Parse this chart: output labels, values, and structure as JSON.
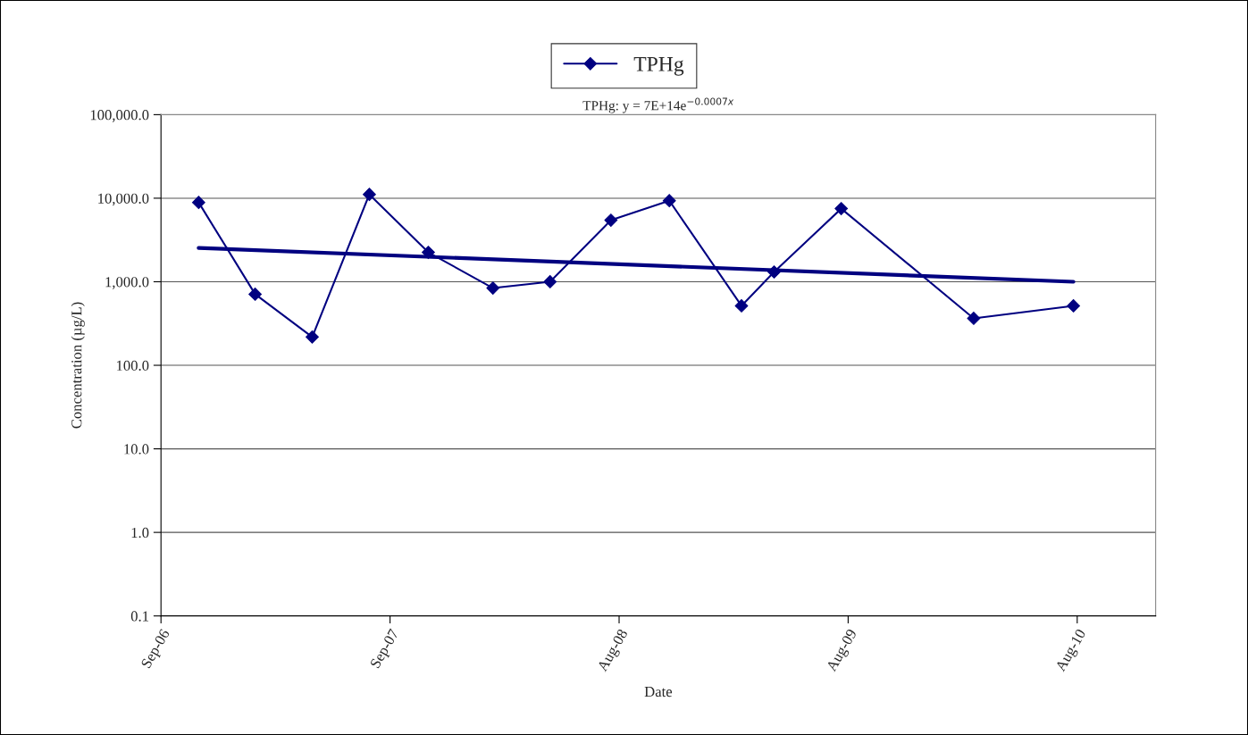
{
  "chart_data": {
    "type": "line",
    "xlabel": "Date",
    "ylabel": "Concentration (µg/L)",
    "annotations": [
      "TPHg: y = 7E+14e$^{−0.0007x}$"
    ],
    "series": [
      {
        "name": "TPHg",
        "color": "#000080",
        "marker": "diamond",
        "line_style": "solid",
        "x": [
          "2006-10-31",
          "2007-01-29",
          "2007-04-30",
          "2007-07-30",
          "2007-11-01",
          "2008-02-12",
          "2008-05-13",
          "2008-08-18",
          "2008-11-19",
          "2009-03-14",
          "2009-05-05",
          "2009-08-20",
          "2010-03-19",
          "2010-08-25"
        ],
        "values": [
          8900,
          710,
          218,
          11100,
          2250,
          840,
          1000,
          5450,
          9350,
          515,
          1310,
          7500,
          365,
          515
        ]
      },
      {
        "type": "line",
        "color": "#000080",
        "marker": "none",
        "line_style": "solid",
        "x": [
          "2006-10-31",
          "2010-08-25"
        ],
        "values": [
          2540,
          1000
        ]
      }
    ],
    "log": "y",
    "xlim": [
      "2006-09-01",
      "2011-01-03"
    ],
    "xticks": [
      {
        "value": "2006-09-01",
        "label": "Sep-06"
      },
      {
        "value": "2007-09-01",
        "label": "Sep-07"
      },
      {
        "value": "2008-08-31",
        "label": "Aug-08"
      },
      {
        "value": "2009-08-31",
        "label": "Aug-09"
      },
      {
        "value": "2010-08-31",
        "label": "Aug-10"
      }
    ],
    "ylim": [
      0.1,
      100000
    ],
    "yticks": [
      {
        "value": 0.1,
        "label": "0.1"
      },
      {
        "value": 1,
        "label": "1.0"
      },
      {
        "value": 10,
        "label": "10.0"
      },
      {
        "value": 100,
        "label": "100.0"
      },
      {
        "value": 1000,
        "label": "1,000.0"
      },
      {
        "value": 10000,
        "label": "10,000.0"
      },
      {
        "value": 100000,
        "label": "100,000.0"
      }
    ],
    "grid": "y",
    "legend": "top"
  }
}
